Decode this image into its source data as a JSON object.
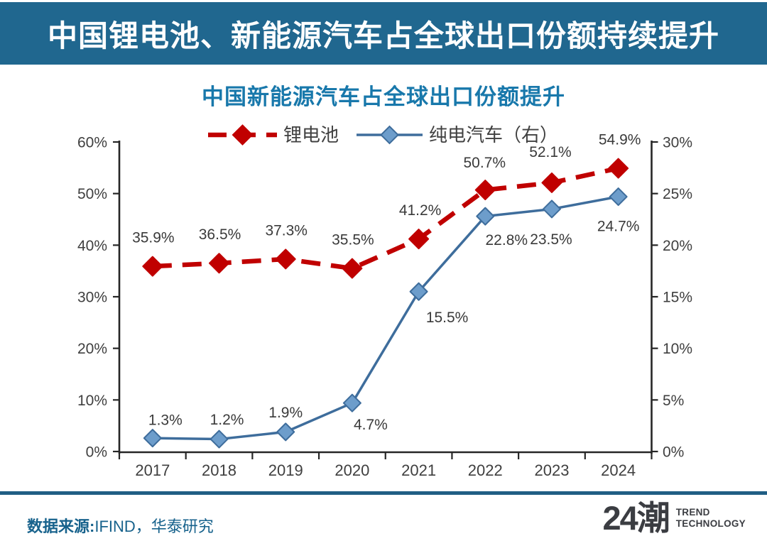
{
  "banner": {
    "title": "中国锂电池、新能源汽车占全球出口份额持续提升"
  },
  "chart": {
    "title": "中国新能源汽车占全球出口份额提升"
  },
  "footer": {
    "source_label": "数据来源:",
    "source_text": "IFIND，华泰研究",
    "logo_mark": "24潮",
    "logo_line1": "TREND",
    "logo_line2": "TECHNOLOGY"
  },
  "colors": {
    "banner_bg": "#20678f",
    "title_color": "#1878ab",
    "source_color": "#17628c",
    "separator": "#205e84",
    "logo_color": "#3b3d42",
    "axis": "#262626",
    "tick_label": "#3f3f3f",
    "data_label": "#3a3a3a",
    "legend_label": "#404040"
  },
  "chart_data": {
    "type": "line",
    "title": "中国新能源汽车占全球出口份额提升",
    "categories": [
      "2017",
      "2018",
      "2019",
      "2020",
      "2021",
      "2022",
      "2023",
      "2024"
    ],
    "series": [
      {
        "name": "锂电池",
        "axis": "left",
        "line_style": "dashed",
        "color": "#c00000",
        "marker_fill": "#c00000",
        "values": [
          35.9,
          36.5,
          37.3,
          35.5,
          41.2,
          50.7,
          52.1,
          54.9
        ],
        "labels": [
          "35.9%",
          "36.5%",
          "37.3%",
          "35.5%",
          "41.2%",
          "50.7%",
          "52.1%",
          "54.9%"
        ]
      },
      {
        "name": "纯电汽车（右）",
        "axis": "right",
        "line_style": "solid",
        "color": "#3e6d9c",
        "marker_fill": "#6d9dcb",
        "values": [
          1.3,
          1.2,
          1.9,
          4.7,
          15.5,
          22.8,
          23.5,
          24.7
        ],
        "labels": [
          "1.3%",
          "1.2%",
          "1.9%",
          "4.7%",
          "15.5%",
          "22.8%",
          "23.5%",
          "24.7%"
        ]
      }
    ],
    "left_axis": {
      "min": 0,
      "max": 60,
      "step": 10,
      "tick_labels": [
        "0%",
        "10%",
        "20%",
        "30%",
        "40%",
        "50%",
        "60%"
      ]
    },
    "right_axis": {
      "min": 0,
      "max": 30,
      "step": 5,
      "tick_labels": [
        "0%",
        "5%",
        "10%",
        "15%",
        "20%",
        "25%",
        "30%"
      ]
    },
    "legend_position": "top",
    "grid": false
  }
}
